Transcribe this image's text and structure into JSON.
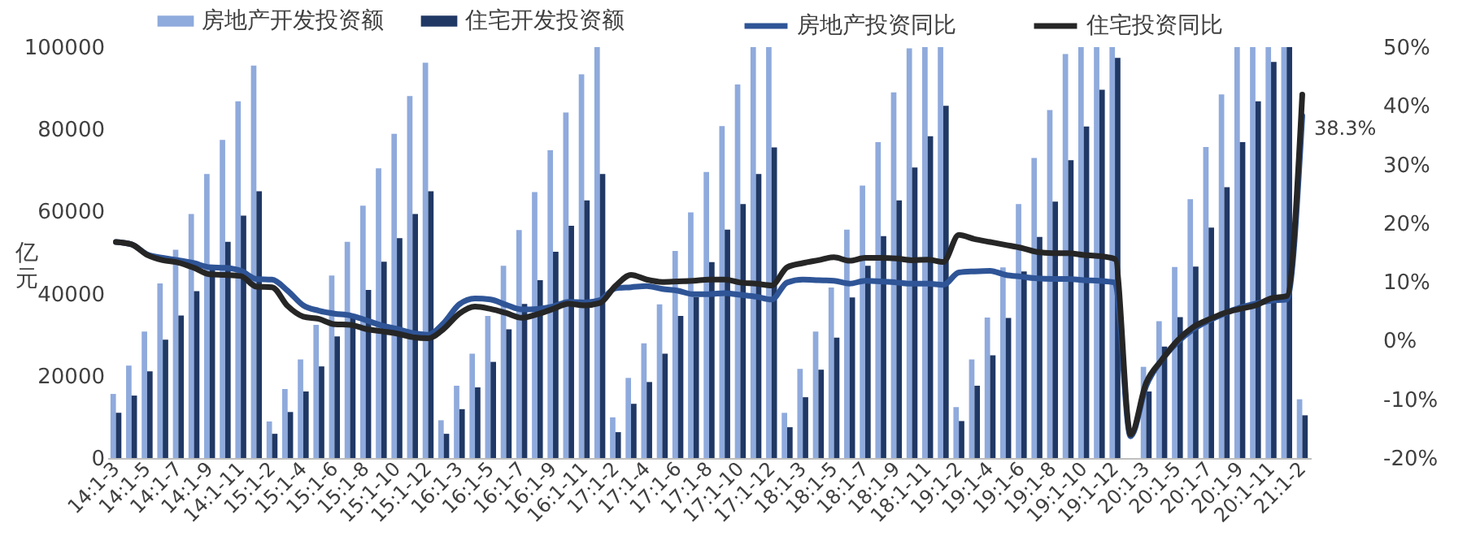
{
  "chart_data": {
    "type": "bar",
    "ylabel": "亿元",
    "legend": "top",
    "categories": [
      "14:1-3",
      null,
      "14:1-5",
      null,
      "14:1-7",
      null,
      "14:1-9",
      null,
      "14:1-11",
      null,
      "15:1-2",
      null,
      "15:1-4",
      null,
      "15:1-6",
      null,
      "15:1-8",
      null,
      "15:1-10",
      null,
      "15:1-12",
      null,
      "16:1-3",
      null,
      "16:1-5",
      null,
      "16:1-7",
      null,
      "16:1-9",
      null,
      "16:1-11",
      null,
      "17:1-2",
      null,
      "17:1-4",
      null,
      "17:1-6",
      null,
      "17:1-8",
      null,
      "17:1-10",
      null,
      "17:1-12",
      null,
      "18:1-3",
      null,
      "18:1-5",
      null,
      "18:1-7",
      null,
      "18:1-9",
      null,
      "18:1-11",
      null,
      "19:1-2",
      null,
      "19:1-4",
      null,
      "19:1-6",
      null,
      "19:1-8",
      null,
      "19:1-10",
      null,
      "19:1-12",
      null,
      "20:1-3",
      null,
      "20:1-5",
      null,
      "20:1-7",
      null,
      "20:1-9",
      null,
      "20:1-11",
      null,
      "21:1-2"
    ],
    "series": [
      {
        "name": "房地产开发投资额",
        "color": "#8faadc",
        "values": [
          15600,
          22500,
          30800,
          42500,
          50700,
          59400,
          69100,
          77400,
          86800,
          95500,
          8900,
          16800,
          24000,
          32400,
          44400,
          52600,
          61400,
          70500,
          78900,
          88100,
          96200,
          9200,
          17600,
          25400,
          34600,
          46800,
          55500,
          64700,
          74900,
          84100,
          93400,
          100000,
          9900,
          19500,
          27900,
          37400,
          50400,
          59800,
          69600,
          80800,
          90900,
          100000,
          100000,
          11000,
          21700,
          30800,
          41500,
          55600,
          66300,
          76900,
          89000,
          99700,
          100000,
          100000,
          12400,
          24000,
          34200,
          46400,
          61800,
          73000,
          84700,
          98300,
          100000,
          100000,
          100000,
          null,
          22200,
          33300,
          46500,
          63000,
          75700,
          88500,
          100000,
          100000,
          100000,
          100000,
          14300
        ]
      },
      {
        "name": "住宅开发投资额",
        "color": "#203864",
        "values": [
          11000,
          15200,
          21100,
          28800,
          34700,
          40600,
          47000,
          52600,
          59000,
          64900,
          5900,
          11200,
          16200,
          22300,
          29600,
          35000,
          40900,
          47800,
          53500,
          59400,
          64900,
          5900,
          11900,
          17200,
          23400,
          31300,
          37500,
          43300,
          50200,
          56500,
          62700,
          69100,
          6300,
          13200,
          18500,
          25400,
          34600,
          39200,
          47700,
          55600,
          61800,
          69100,
          75600,
          7500,
          14800,
          21500,
          29300,
          39100,
          46800,
          54000,
          62700,
          70700,
          78300,
          85700,
          9000,
          17600,
          25000,
          34100,
          45400,
          53800,
          62400,
          72500,
          80700,
          89600,
          97400,
          null,
          16200,
          27100,
          34300,
          46600,
          56100,
          65900,
          76900,
          86800,
          96400,
          100000,
          10400
        ]
      },
      {
        "name": "房地产投资同比",
        "type": "line",
        "axis": "y2",
        "color": "#2f5597",
        "values": [
          16.8,
          16.4,
          14.7,
          14.1,
          13.7,
          13.2,
          12.5,
          12.4,
          11.9,
          10.5,
          10.4,
          8.5,
          6.0,
          5.1,
          4.6,
          4.3,
          3.5,
          2.6,
          2.0,
          1.3,
          1.0,
          3.0,
          6.2,
          7.2,
          7.0,
          6.1,
          5.3,
          5.4,
          5.8,
          6.6,
          6.5,
          6.9,
          8.9,
          9.1,
          9.3,
          8.8,
          8.5,
          7.9,
          7.9,
          8.1,
          7.8,
          7.5,
          7.0,
          9.9,
          10.4,
          10.3,
          10.2,
          9.7,
          10.2,
          10.1,
          9.9,
          9.7,
          9.7,
          9.5,
          11.6,
          11.8,
          11.9,
          11.2,
          10.9,
          10.6,
          10.5,
          10.5,
          10.3,
          10.2,
          9.9,
          -16.3,
          -7.7,
          -3.3,
          -0.3,
          1.9,
          3.4,
          4.6,
          5.6,
          6.3,
          6.8,
          7.0,
          38.3
        ]
      },
      {
        "name": "住宅投资同比",
        "type": "line",
        "axis": "y2",
        "color": "#262626",
        "values": [
          16.8,
          16.4,
          14.6,
          13.7,
          13.3,
          12.4,
          11.3,
          11.2,
          11.0,
          9.2,
          9.1,
          5.9,
          4.1,
          3.7,
          2.8,
          2.7,
          2.0,
          1.6,
          1.2,
          0.6,
          0.4,
          2.0,
          4.6,
          5.8,
          5.4,
          4.7,
          3.9,
          4.5,
          5.4,
          6.3,
          6.0,
          6.4,
          9.3,
          11.2,
          10.4,
          10.0,
          10.1,
          10.2,
          10.4,
          10.4,
          9.9,
          9.7,
          9.4,
          12.5,
          13.2,
          13.7,
          14.2,
          13.6,
          14.1,
          14.1,
          14.0,
          13.7,
          13.8,
          13.4,
          18.0,
          17.3,
          16.8,
          16.3,
          15.8,
          15.1,
          14.9,
          14.9,
          14.6,
          14.4,
          13.9,
          -16.0,
          -7.2,
          -3.3,
          0.0,
          2.3,
          3.6,
          4.7,
          5.4,
          6.0,
          7.2,
          7.6,
          41.9
        ]
      }
    ],
    "ylim": [
      0,
      100000
    ],
    "yticks": [
      0,
      20000,
      40000,
      60000,
      80000,
      100000
    ],
    "y2lim": [
      -20,
      50
    ],
    "y2ticks": [
      {
        "value": -20,
        "label": "-20%"
      },
      {
        "value": -10,
        "label": "-10%"
      },
      {
        "value": 0,
        "label": "0%"
      },
      {
        "value": 10,
        "label": "10%"
      },
      {
        "value": 20,
        "label": "20%"
      },
      {
        "value": 30,
        "label": "30%"
      },
      {
        "value": 40,
        "label": "40%"
      },
      {
        "value": 50,
        "label": "50%"
      }
    ],
    "annotations": [
      "38.3%"
    ]
  }
}
